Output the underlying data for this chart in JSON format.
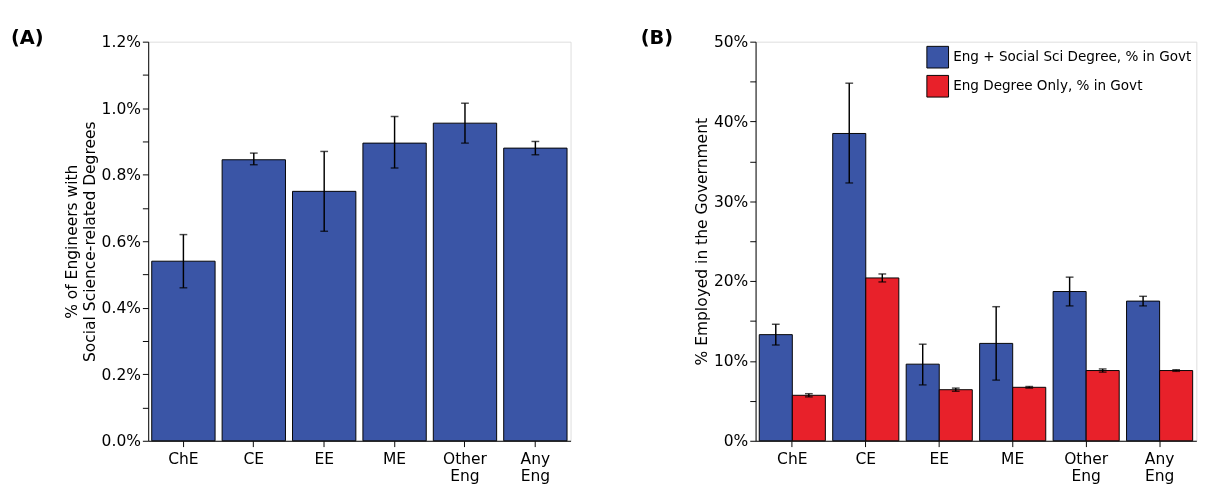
{
  "chart_data": [
    {
      "type": "bar",
      "title": "(A)",
      "ylabel": "% of Engineers with\nSocial Science-related Degrees",
      "categories": [
        "ChE",
        "CE",
        "EE",
        "ME",
        "Other Eng",
        "Any Eng"
      ],
      "series": [
        {
          "color": "#3a55a6",
          "values": [
            0.54,
            0.845,
            0.75,
            0.895,
            0.955,
            0.88
          ],
          "errors": [
            [
              0.46,
              0.62
            ],
            [
              0.83,
              0.865
            ],
            [
              0.63,
              0.87
            ],
            [
              0.82,
              0.975
            ],
            [
              0.895,
              1.015
            ],
            [
              0.86,
              0.9
            ]
          ]
        }
      ],
      "ylim": [
        0,
        1.2
      ],
      "yticks": [
        {
          "value": 0,
          "label": "0.0%"
        },
        {
          "value": 0.1,
          "label": null
        },
        {
          "value": 0.2,
          "label": "0.2%"
        },
        {
          "value": 0.3,
          "label": null
        },
        {
          "value": 0.4,
          "label": "0.4%"
        },
        {
          "value": 0.5,
          "label": null
        },
        {
          "value": 0.6,
          "label": "0.6%"
        },
        {
          "value": 0.7,
          "label": null
        },
        {
          "value": 0.8,
          "label": "0.8%"
        },
        {
          "value": 0.9,
          "label": null
        },
        {
          "value": 1.0,
          "label": "1.0%"
        },
        {
          "value": 1.1,
          "label": null
        },
        {
          "value": 1.2,
          "label": "1.2%"
        }
      ],
      "grid": false,
      "legend": false
    },
    {
      "type": "bar",
      "title": "(B)",
      "ylabel": "% Employed in the Government",
      "categories": [
        "ChE",
        "CE",
        "EE",
        "ME",
        "Other Eng",
        "Any Eng"
      ],
      "series": [
        {
          "name": "Eng + Social Sci Degree, % in Govt",
          "color": "#3a55a6",
          "values": [
            13.3,
            38.5,
            9.6,
            12.2,
            18.7,
            17.5
          ],
          "errors": [
            [
              12.0,
              14.6
            ],
            [
              32.3,
              44.8
            ],
            [
              7.0,
              12.1
            ],
            [
              7.6,
              16.8
            ],
            [
              16.9,
              20.5
            ],
            [
              16.9,
              18.1
            ]
          ]
        },
        {
          "name": "Eng Degree Only, % in Govt",
          "color": "#e8212a",
          "values": [
            5.7,
            20.4,
            6.4,
            6.7,
            8.8,
            8.8
          ],
          "errors": [
            [
              5.5,
              5.9
            ],
            [
              19.9,
              20.9
            ],
            [
              6.2,
              6.6
            ],
            [
              6.6,
              6.8
            ],
            [
              8.6,
              9.0
            ],
            [
              8.7,
              8.9
            ]
          ]
        }
      ],
      "ylim": [
        0,
        50
      ],
      "yticks": [
        {
          "value": 0,
          "label": "0%"
        },
        {
          "value": 5,
          "label": null
        },
        {
          "value": 10,
          "label": "10%"
        },
        {
          "value": 15,
          "label": null
        },
        {
          "value": 20,
          "label": "20%"
        },
        {
          "value": 25,
          "label": null
        },
        {
          "value": 30,
          "label": "30%"
        },
        {
          "value": 35,
          "label": null
        },
        {
          "value": 40,
          "label": "40%"
        },
        {
          "value": 45,
          "label": null
        },
        {
          "value": 50,
          "label": "50%"
        }
      ],
      "grid": false,
      "legend": "top right"
    }
  ]
}
